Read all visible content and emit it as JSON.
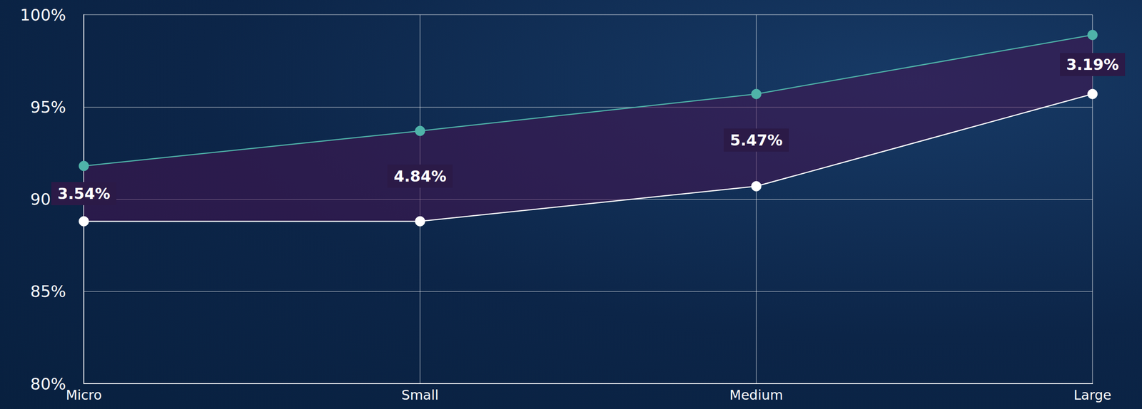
{
  "chart_data": {
    "type": "line",
    "categories": [
      "Micro",
      "Small",
      "Medium",
      "Large"
    ],
    "series": [
      {
        "color": "#4fb3a9",
        "values": [
          91.8,
          93.7,
          95.7,
          98.9
        ]
      },
      {
        "color": "#ffffff",
        "values": [
          88.8,
          88.8,
          90.7,
          95.7
        ]
      }
    ],
    "annotations": [
      "3.54%",
      "4.84%",
      "5.47%",
      "3.19%"
    ],
    "ylim": [
      80,
      100
    ],
    "yticks": [
      {
        "value": 80,
        "label": "80%"
      },
      {
        "value": 85,
        "label": "85%"
      },
      {
        "value": 90,
        "label": "90%"
      },
      {
        "value": 95,
        "label": "95%"
      },
      {
        "value": 100,
        "label": "100%"
      }
    ],
    "grid": true,
    "marker": "circle"
  }
}
